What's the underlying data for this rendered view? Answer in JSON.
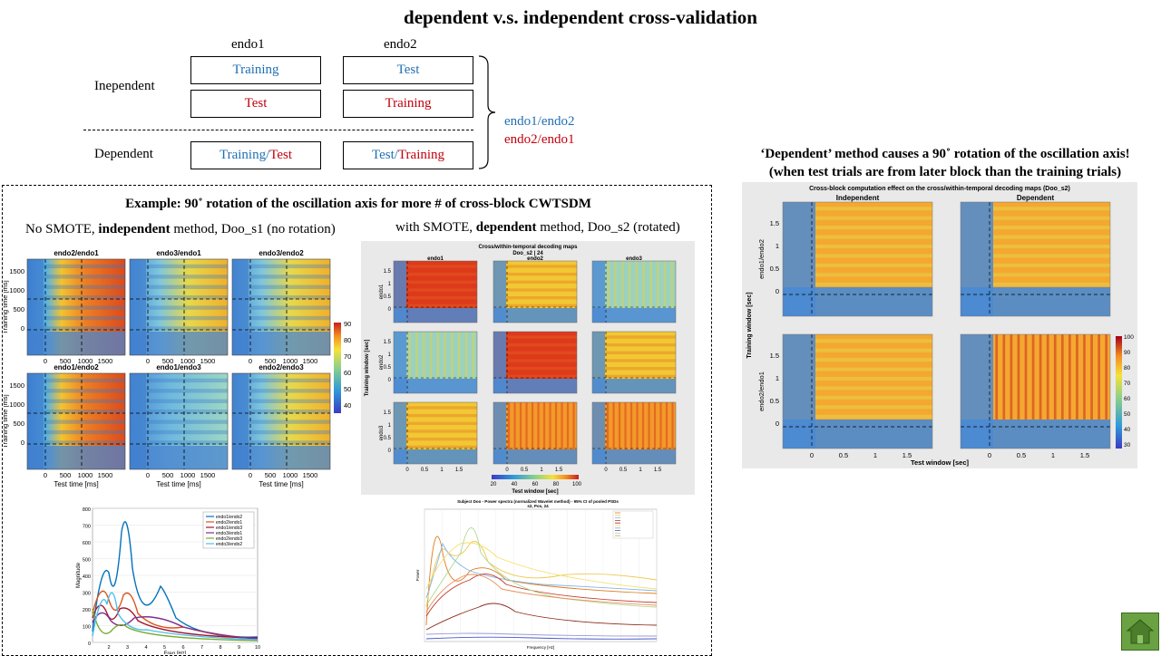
{
  "title": "dependent v.s. independent cross-validation",
  "diagram": {
    "col_headers": [
      "endo1",
      "endo2"
    ],
    "row_independent": "Inepen​dent",
    "row_dependent": "Dependent",
    "indep_row1": {
      "left": "Training",
      "right": "Test"
    },
    "indep_row2": {
      "left": "Test",
      "right": "Training"
    },
    "dep_row": {
      "left_a": "Training",
      "sep": "/",
      "left_b": "Test",
      "right_a": "Test",
      "right_b": "Training"
    },
    "brace_labels": [
      "endo1/endo2",
      "endo2/endo1"
    ]
  },
  "right_text": {
    "line1": "‘Dependent’ method causes a 90˚ rotation of the oscillation axis!",
    "line2": "(when test trials are from later block than the training trials)"
  },
  "example": {
    "title": "Example: 90˚ rotation of the oscillation axis for more # of cross-block CWTSDM",
    "left_caption_a": "No SMOTE, ",
    "left_caption_b": "independent",
    "left_caption_c": " method, Doo_s1 (no rotation)",
    "right_caption_a": "with SMOTE, ",
    "right_caption_b": "dependent",
    "right_caption_c": " method, Doo_s2 (rotated)"
  },
  "left_grid": {
    "titles": [
      "endo2/endo1",
      "endo3/endo1",
      "endo3/endo2",
      "endo1/endo2",
      "endo1/endo3",
      "endo2/endo3"
    ],
    "ylabel": "Training time [ms]",
    "xlabel": "Test time [ms]",
    "yticks": [
      "1500",
      "1000",
      "500",
      "0"
    ],
    "xticks": [
      "0",
      "500",
      "1000",
      "1500"
    ],
    "colorbar": [
      "90",
      "80",
      "70",
      "60",
      "50",
      "40"
    ]
  },
  "mid_grid": {
    "title": "Cross/within-temporal decoding maps",
    "subtitle": "Doo_s2 | 24",
    "col_titles": [
      "endo1",
      "endo2",
      "endo3"
    ],
    "row_titles": [
      "endo1",
      "endo2",
      "endo3"
    ],
    "ylabel": "Training window [sec]",
    "xlabel": "Test window [sec]",
    "yticks": [
      "1.5",
      "1",
      "0.5",
      "0"
    ],
    "xticks": [
      "0",
      "0.5",
      "1",
      "1.5"
    ],
    "colorbar": [
      "20",
      "40",
      "60",
      "80",
      "100"
    ]
  },
  "right_fig": {
    "title": "Cross-block computation effect on the cross/within-temporal decoding maps (Doo_s2)",
    "col_titles": [
      "Independent",
      "Dependent"
    ],
    "row_titles": [
      "endo1/endo2",
      "endo2/endo1"
    ],
    "ylabel": "Training window [sec]",
    "xlabel": "Test window [sec]",
    "yticks": [
      "1.5",
      "1",
      "0.5",
      "0"
    ],
    "xticks": [
      "0",
      "0.5",
      "1",
      "1.5"
    ],
    "colorbar": [
      "100",
      "90",
      "80",
      "70",
      "60",
      "50",
      "40",
      "30"
    ]
  },
  "psd_left": {
    "ylabel": "Magnitude",
    "xlabel": "Freq [Hz]",
    "yticks": [
      "800",
      "700",
      "600",
      "500",
      "400",
      "300",
      "200",
      "100",
      "0"
    ],
    "xticks": [
      "2",
      "3",
      "4",
      "5",
      "6",
      "7",
      "8",
      "9",
      "10"
    ],
    "legend": [
      "endo1/endo2",
      "endo2/endo1",
      "endo1/endo3",
      "endo3/endo1",
      "endo2/endo3",
      "endo3/endo2"
    ],
    "colors": [
      "#0072bd",
      "#d95319",
      "#a2142f",
      "#7e2f8e",
      "#77ac30",
      "#4dbeee"
    ]
  },
  "psd_right": {
    "title": "Subject Doo - Power spectra (normalized Wavelet method) - 95% CI of pooled PSDs",
    "subtitle": "s2, Pos, 24",
    "ylabel": "Power",
    "xlabel": "Frequency [Hz]"
  }
}
